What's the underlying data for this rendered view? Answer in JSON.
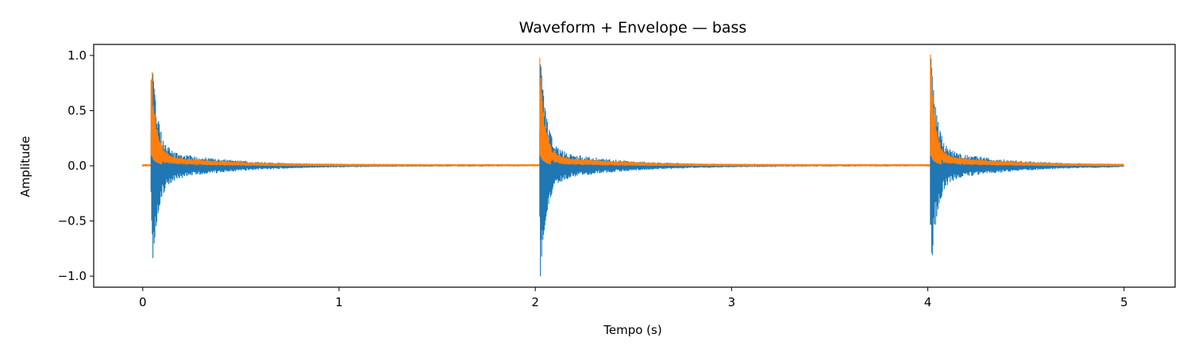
{
  "chart_data": {
    "type": "line",
    "title": "Waveform + Envelope — bass",
    "xlabel": "Tempo (s)",
    "ylabel": "Amplitude",
    "xlim": [
      -0.25,
      5.26
    ],
    "ylim": [
      -1.1,
      1.1
    ],
    "x_ticks": [
      0,
      1,
      2,
      3,
      4,
      5
    ],
    "x_tick_labels": [
      "0",
      "1",
      "2",
      "3",
      "4",
      "5"
    ],
    "y_ticks": [
      1.0,
      0.5,
      0.0,
      -0.5,
      -1.0
    ],
    "y_tick_labels": [
      "1.0",
      "0.5",
      "0.0",
      "−0.5",
      "−1.0"
    ],
    "grid": false,
    "legend": "none",
    "series": [
      {
        "type": "waveform",
        "color": "#1f77b4",
        "x_range": [
          0,
          5.0
        ],
        "onsets": [
          0.04,
          2.02,
          4.01
        ],
        "min": -1.0,
        "max": 1.0
      },
      {
        "type": "envelope",
        "color": "#ff7f0e",
        "x_range": [
          0,
          5.0
        ],
        "onsets": [
          0.04,
          2.02,
          4.01
        ],
        "min": 0.0,
        "max": 1.0
      }
    ]
  }
}
